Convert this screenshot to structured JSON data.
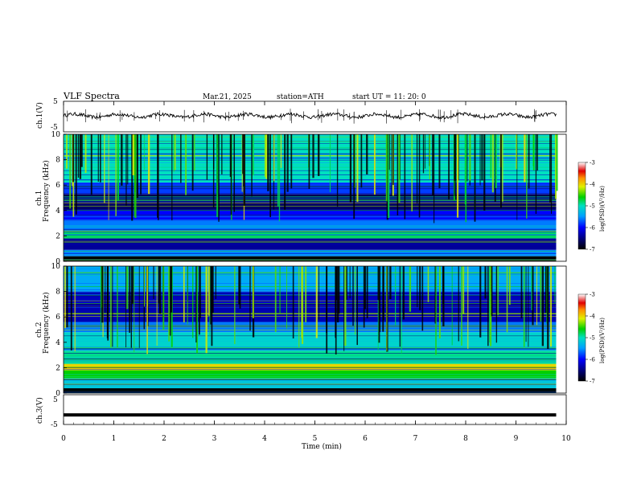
{
  "header": {
    "title": "VLF  Spectra",
    "date": "Mar.21, 2025",
    "station": "station=ATH",
    "start": "start  UT  =    11: 20: 0"
  },
  "chart_data": [
    {
      "type": "line",
      "name": "ch1-waveform",
      "ylabel": "ch.1(V)",
      "ylim": [
        -5,
        5
      ],
      "yticks": [
        "5",
        "-5"
      ],
      "xlim": [
        0,
        10
      ],
      "description_level": 0.3
    },
    {
      "type": "heatmap",
      "name": "ch1-spectrogram",
      "ylabel": "ch.1\nFrequency  (kHz)",
      "ylim": [
        0,
        10
      ],
      "yticks": [
        "10",
        "8",
        "6",
        "4",
        "2",
        "0"
      ],
      "xlim": [
        0,
        9.8
      ],
      "colorbar": {
        "label": "log(PSD)(V²/Hz)",
        "range": [
          -7,
          -3
        ],
        "ticks": [
          "-3",
          "-4",
          "-5",
          "-6",
          "-7"
        ]
      },
      "bands": [
        {
          "from": 0.0,
          "to": 0.4,
          "level": -7
        },
        {
          "from": 0.4,
          "to": 0.9,
          "level": -5.5
        },
        {
          "from": 0.9,
          "to": 1.8,
          "level": -6.4
        },
        {
          "from": 1.8,
          "to": 2.4,
          "level": -4.8
        },
        {
          "from": 2.4,
          "to": 3.2,
          "level": -5.6
        },
        {
          "from": 3.2,
          "to": 4.0,
          "level": -6.0
        },
        {
          "from": 4.0,
          "to": 5.3,
          "level": -6.6
        },
        {
          "from": 5.3,
          "to": 6.2,
          "level": -5.8
        },
        {
          "from": 6.2,
          "to": 10.0,
          "level": -5.0
        }
      ]
    },
    {
      "type": "heatmap",
      "name": "ch2-spectrogram",
      "ylabel": "ch.2\nFrequency  (kHz)",
      "ylim": [
        0,
        10
      ],
      "yticks": [
        "10",
        "8",
        "6",
        "4",
        "2",
        "0"
      ],
      "xlim": [
        0,
        9.8
      ],
      "colorbar": {
        "label": "log(PSD)(V²/Hz)",
        "range": [
          -7,
          -3
        ],
        "ticks": [
          "-3",
          "-4",
          "-5",
          "-6",
          "-7"
        ]
      },
      "bands": [
        {
          "from": 0.0,
          "to": 0.3,
          "level": -7
        },
        {
          "from": 0.3,
          "to": 1.2,
          "level": -5.2
        },
        {
          "from": 1.2,
          "to": 1.8,
          "level": -4.6
        },
        {
          "from": 1.8,
          "to": 2.3,
          "level": -4.0
        },
        {
          "from": 2.3,
          "to": 3.3,
          "level": -4.9
        },
        {
          "from": 3.3,
          "to": 4.8,
          "level": -5.1
        },
        {
          "from": 4.8,
          "to": 5.6,
          "level": -5.6
        },
        {
          "from": 5.6,
          "to": 8.0,
          "level": -6.3
        },
        {
          "from": 8.0,
          "to": 10.0,
          "level": -5.4
        }
      ]
    },
    {
      "type": "line",
      "name": "ch3-waveform",
      "ylabel": "ch.3(V)",
      "ylim": [
        -5,
        5
      ],
      "yticks": [
        "5",
        "-5"
      ],
      "xlim": [
        0,
        10
      ],
      "description_level": -1.8
    }
  ],
  "xaxis": {
    "label": "Time  (min)",
    "ticks": [
      "0",
      "1",
      "2",
      "3",
      "4",
      "5",
      "6",
      "7",
      "8",
      "9",
      "10"
    ]
  }
}
